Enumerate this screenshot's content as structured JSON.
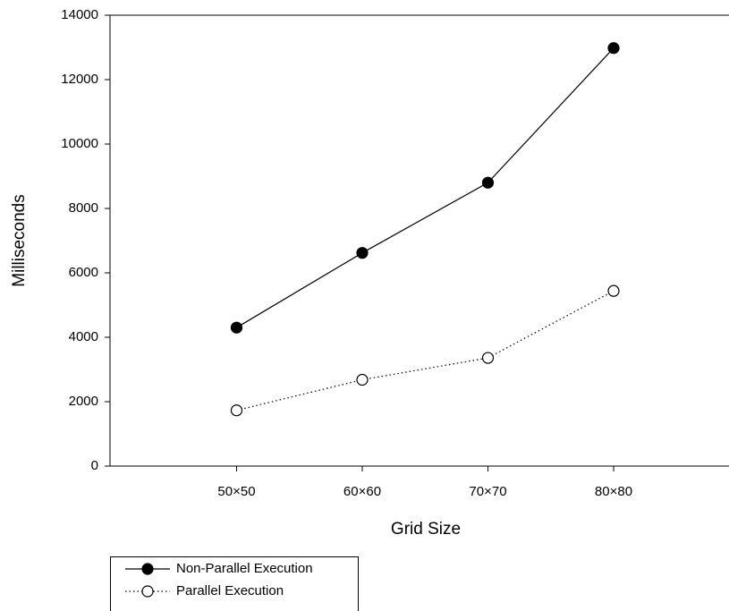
{
  "chart_data": {
    "type": "line",
    "x_label": "Grid Size",
    "y_label": "Milliseconds",
    "categories": [
      "50×50",
      "60×60",
      "70×70",
      "80×80"
    ],
    "series": [
      {
        "name": "Non-Parallel Execution",
        "color": "#000000",
        "line_style": "solid",
        "marker_fill": "#000000",
        "values": [
          4300,
          6620,
          8800,
          12980
        ]
      },
      {
        "name": "Parallel Execution",
        "color": "#000000",
        "line_style": "dotted",
        "marker_fill": "#ffffff",
        "values": [
          1730,
          2680,
          3360,
          5440
        ]
      }
    ],
    "ylim": [
      0,
      14000
    ],
    "yticks": [
      0,
      2000,
      4000,
      6000,
      8000,
      10000,
      12000,
      14000
    ]
  }
}
